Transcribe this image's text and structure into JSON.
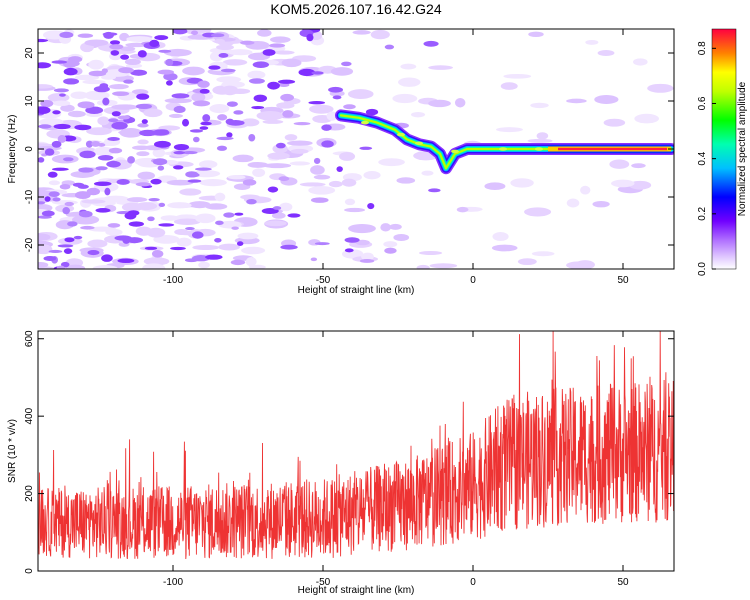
{
  "title": "KOM5.2026.107.16.42.G24",
  "colors": {
    "snr_line": "#ee3333",
    "frame": "#000000"
  },
  "chart_data": [
    {
      "type": "heatmap",
      "name": "spectrogram",
      "xlabel": "Height of straight line (km)",
      "ylabel": "Frequency (Hz)",
      "xlim": [
        -145,
        67
      ],
      "ylim": [
        -25,
        25
      ],
      "xticks": [
        -100,
        -50,
        0,
        50
      ],
      "xtick_labels": [
        "-100",
        "-50",
        "0",
        "50"
      ],
      "yticks": [
        -20,
        -10,
        0,
        10,
        20
      ],
      "ytick_labels": [
        "-20",
        "-10",
        "0",
        "10",
        "20"
      ],
      "track": [
        {
          "x": -44,
          "y": 7
        },
        {
          "x": -38,
          "y": 6.5
        },
        {
          "x": -32,
          "y": 5.5
        },
        {
          "x": -26,
          "y": 4
        },
        {
          "x": -22,
          "y": 2
        },
        {
          "x": -18,
          "y": 1
        },
        {
          "x": -14,
          "y": 0.5
        },
        {
          "x": -11,
          "y": -1
        },
        {
          "x": -9,
          "y": -4
        },
        {
          "x": -6,
          "y": -1
        },
        {
          "x": -2,
          "y": 0
        },
        {
          "x": 10,
          "y": 0
        },
        {
          "x": 25,
          "y": 0
        },
        {
          "x": 66,
          "y": 0
        }
      ],
      "colorbar": {
        "label": "Normalized spectral amplitude",
        "range": [
          0,
          0.87
        ],
        "ticks": [
          0.0,
          0.2,
          0.4,
          0.6,
          0.8
        ],
        "tick_labels": [
          "0.0",
          "0.2",
          "0.4",
          "0.6",
          "0.8"
        ]
      }
    },
    {
      "type": "line",
      "name": "snr",
      "xlabel": "Height of straight line (km)",
      "ylabel": "SNR (10 * v/v)",
      "xlim": [
        -145,
        67
      ],
      "ylim": [
        0,
        620
      ],
      "xticks": [
        -100,
        -50,
        0,
        50
      ],
      "xtick_labels": [
        "-100",
        "-50",
        "0",
        "50"
      ],
      "yticks": [
        0,
        200,
        400,
        600
      ],
      "ytick_labels": [
        "0",
        "200",
        "400",
        "600"
      ],
      "trend_x": [
        -145,
        -100,
        -50,
        -20,
        0,
        10,
        20,
        40,
        67
      ],
      "trend_mean": [
        125,
        125,
        135,
        175,
        220,
        270,
        290,
        300,
        310
      ],
      "trend_spread": [
        60,
        65,
        70,
        80,
        95,
        115,
        120,
        120,
        125
      ]
    }
  ]
}
